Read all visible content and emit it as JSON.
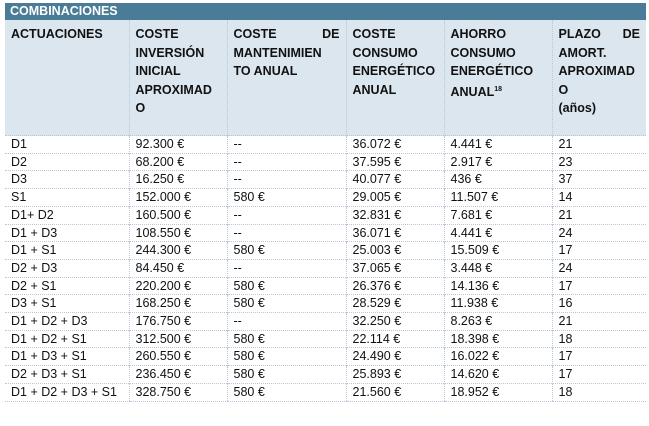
{
  "title": "COMBINACIONES",
  "headers": {
    "c0": "ACTUACIONES",
    "c1": "COSTE INVERSIÓN INICIAL APROXIMAD O",
    "c2a": "COSTE",
    "c2b": "DE",
    "c2c": "MANTENIMIEN TO ANUAL",
    "c3": "COSTE CONSUMO ENERGÉTICO ANUAL",
    "c4": "AHORRO CONSUMO ENERGÉTICO ANUAL",
    "c4sup": "18",
    "c5a": "PLAZO",
    "c5b": "DE",
    "c5c": "AMORT. APROXIMAD O",
    "c5d": "(años)"
  },
  "rows": [
    [
      "D1",
      "92.300 €",
      "--",
      "36.072 €",
      "4.441 €",
      "21"
    ],
    [
      "D2",
      "68.200 €",
      "--",
      "37.595 €",
      "2.917 €",
      "23"
    ],
    [
      "D3",
      "16.250 €",
      "--",
      "40.077 €",
      "436 €",
      "37"
    ],
    [
      "S1",
      "152.000 €",
      "580 €",
      "29.005 €",
      "11.507 €",
      "14"
    ],
    [
      "D1+ D2",
      "160.500 €",
      "--",
      "32.831 €",
      "7.681 €",
      "21"
    ],
    [
      "D1 + D3",
      "108.550 €",
      "--",
      "36.071 €",
      "4.441 €",
      "24"
    ],
    [
      "D1 + S1",
      "244.300 €",
      "580 €",
      "25.003 €",
      "15.509 €",
      "17"
    ],
    [
      "D2 + D3",
      "84.450 €",
      "--",
      "37.065 €",
      "3.448 €",
      "24"
    ],
    [
      "D2 + S1",
      "220.200 €",
      "580 €",
      "26.376 €",
      "14.136 €",
      "17"
    ],
    [
      "D3 + S1",
      "168.250 €",
      "580 €",
      "28.529 €",
      "11.938 €",
      "16"
    ],
    [
      "D1 + D2 + D3",
      "176.750 €",
      "--",
      "32.250 €",
      "8.263 €",
      "21"
    ],
    [
      "D1 + D2 + S1",
      "312.500 €",
      "580 €",
      "22.114 €",
      "18.398 €",
      "18"
    ],
    [
      "D1 + D3 + S1",
      "260.550 €",
      "580 €",
      "24.490 €",
      "16.022 €",
      "17"
    ],
    [
      "D2 + D3 + S1",
      "236.450 €",
      "580 €",
      "25.893 €",
      "14.620 €",
      "17"
    ],
    [
      "D1 + D2 + D3 + S1",
      "328.750 €",
      "580 €",
      "21.560 €",
      "18.952 €",
      "18"
    ]
  ]
}
